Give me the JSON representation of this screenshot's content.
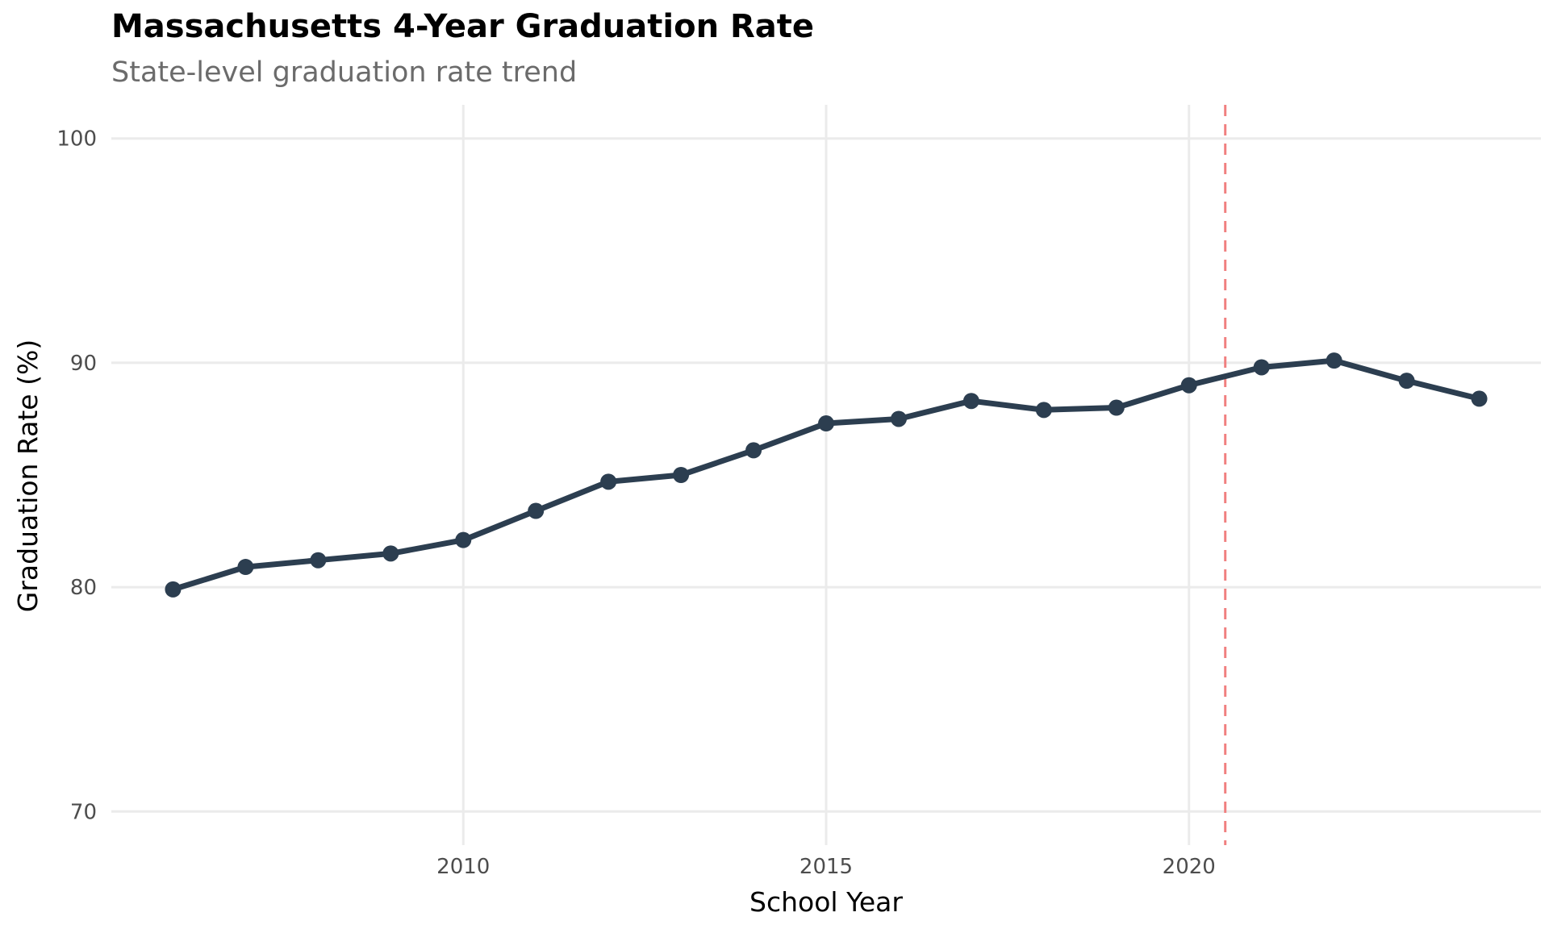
{
  "chart_data": {
    "type": "line",
    "title": "Massachusetts 4-Year Graduation Rate",
    "subtitle": "State-level graduation rate trend",
    "xlabel": "School Year",
    "ylabel": "Graduation Rate (%)",
    "xlim": [
      2005.15,
      2024.85
    ],
    "ylim": [
      68.5,
      101.5
    ],
    "x_ticks": [
      2010,
      2015,
      2020
    ],
    "y_ticks": [
      70,
      80,
      90,
      100
    ],
    "grid": true,
    "series": [
      {
        "name": "Graduation Rate",
        "color": "#2c3e50",
        "x": [
          2006,
          2007,
          2008,
          2009,
          2010,
          2011,
          2012,
          2013,
          2014,
          2015,
          2016,
          2017,
          2018,
          2019,
          2020,
          2021,
          2022,
          2023,
          2024
        ],
        "values": [
          79.9,
          80.9,
          81.2,
          81.5,
          82.1,
          83.4,
          84.7,
          85.0,
          86.1,
          87.3,
          87.5,
          88.3,
          87.9,
          88.0,
          89.0,
          89.8,
          90.1,
          89.2,
          88.4
        ]
      }
    ],
    "reference_line": {
      "x": 2020.5,
      "color": "#f08080",
      "style": "dashed"
    }
  }
}
